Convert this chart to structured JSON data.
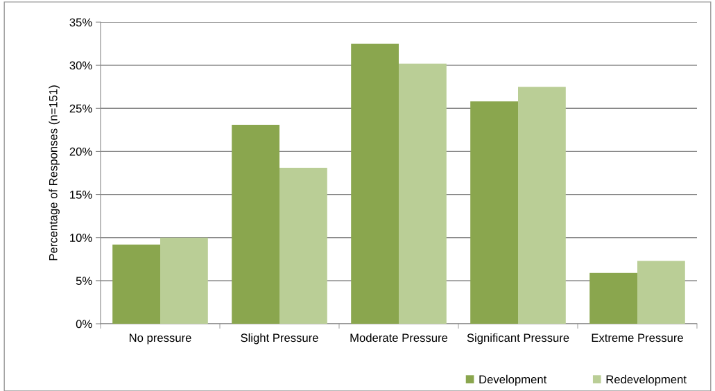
{
  "chart_data": {
    "type": "bar",
    "ylabel": "Percentage of Responses (n=151)",
    "categories": [
      "No pressure",
      "Slight Pressure",
      "Moderate Pressure",
      "Significant Pressure",
      "Extreme Pressure"
    ],
    "series": [
      {
        "name": "Development",
        "color": "#8aa64e",
        "values": [
          9.2,
          23.1,
          32.5,
          25.8,
          5.9
        ]
      },
      {
        "name": "Redevelopment",
        "color": "#bace96",
        "values": [
          10.0,
          18.1,
          30.2,
          27.5,
          7.3
        ]
      }
    ],
    "ylim": [
      0,
      35
    ],
    "yticks": [
      {
        "value": 0,
        "label": "0%"
      },
      {
        "value": 5,
        "label": "5%"
      },
      {
        "value": 10,
        "label": "10%"
      },
      {
        "value": 15,
        "label": "15%"
      },
      {
        "value": 20,
        "label": "20%"
      },
      {
        "value": 25,
        "label": "25%"
      },
      {
        "value": 30,
        "label": "30%"
      },
      {
        "value": 35,
        "label": "35%"
      }
    ],
    "grid": "y",
    "legend": "bottom right"
  }
}
